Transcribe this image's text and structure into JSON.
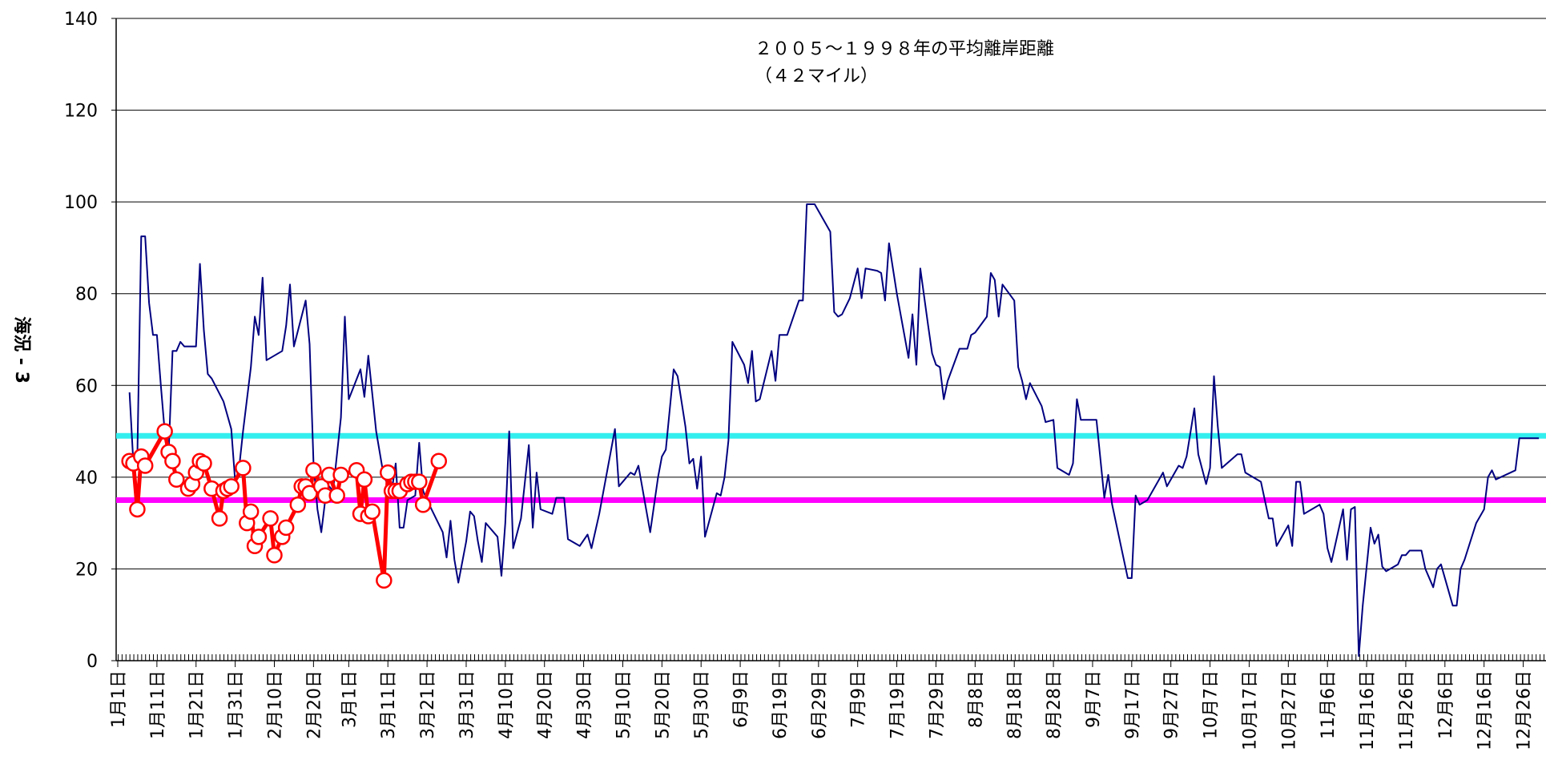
{
  "chart_data": {
    "type": "line",
    "annotation": [
      "２００５～１９９８年の平均離岸距離",
      "（４２マイル）"
    ],
    "y_label": "海況 - 3",
    "xlim": [
      1,
      365
    ],
    "xticks": [
      {
        "value": 1,
        "label": "1月1日"
      },
      {
        "value": 11,
        "label": "1月11日"
      },
      {
        "value": 21,
        "label": "1月21日"
      },
      {
        "value": 31,
        "label": "1月31日"
      },
      {
        "value": 41,
        "label": "2月10日"
      },
      {
        "value": 51,
        "label": "2月20日"
      },
      {
        "value": 60,
        "label": "3月1日"
      },
      {
        "value": 70,
        "label": "3月11日"
      },
      {
        "value": 80,
        "label": "3月21日"
      },
      {
        "value": 90,
        "label": "3月31日"
      },
      {
        "value": 100,
        "label": "4月10日"
      },
      {
        "value": 110,
        "label": "4月20日"
      },
      {
        "value": 120,
        "label": "4月30日"
      },
      {
        "value": 130,
        "label": "5月10日"
      },
      {
        "value": 140,
        "label": "5月20日"
      },
      {
        "value": 150,
        "label": "5月30日"
      },
      {
        "value": 160,
        "label": "6月9日"
      },
      {
        "value": 170,
        "label": "6月19日"
      },
      {
        "value": 180,
        "label": "6月29日"
      },
      {
        "value": 190,
        "label": "7月9日"
      },
      {
        "value": 200,
        "label": "7月19日"
      },
      {
        "value": 210,
        "label": "7月29日"
      },
      {
        "value": 220,
        "label": "8月8日"
      },
      {
        "value": 230,
        "label": "8月18日"
      },
      {
        "value": 240,
        "label": "8月28日"
      },
      {
        "value": 250,
        "label": "9月7日"
      },
      {
        "value": 260,
        "label": "9月17日"
      },
      {
        "value": 270,
        "label": "9月27日"
      },
      {
        "value": 280,
        "label": "10月7日"
      },
      {
        "value": 290,
        "label": "10月17日"
      },
      {
        "value": 300,
        "label": "10月27日"
      },
      {
        "value": 310,
        "label": "11月6日"
      },
      {
        "value": 320,
        "label": "11月16日"
      },
      {
        "value": 330,
        "label": "11月26日"
      },
      {
        "value": 340,
        "label": "12月6日"
      },
      {
        "value": 350,
        "label": "12月16日"
      },
      {
        "value": 360,
        "label": "12月26日"
      }
    ],
    "ylim": [
      0,
      140
    ],
    "yticks": [
      0,
      20,
      40,
      60,
      80,
      100,
      120,
      140
    ],
    "grid": true,
    "hlines": [
      {
        "value": 49,
        "color": "#33eeee"
      },
      {
        "value": 35,
        "color": "#ff00ff"
      }
    ],
    "series": [
      {
        "color": "#000080",
        "markers": false,
        "x": [
          4,
          5,
          6,
          7,
          8,
          9,
          10,
          11,
          12,
          13,
          14,
          15,
          16,
          17,
          18,
          21,
          22,
          23,
          24,
          25,
          28,
          30,
          31,
          32,
          33,
          35,
          36,
          37,
          38,
          39,
          43,
          44,
          45,
          46,
          49,
          50,
          51,
          52,
          53,
          54,
          55,
          56,
          57,
          58,
          59,
          60,
          63,
          64,
          65,
          67,
          69,
          71,
          72,
          73,
          74,
          75,
          77,
          78,
          79,
          80,
          84,
          85,
          86,
          87,
          88,
          90,
          91,
          92,
          93,
          94,
          95,
          98,
          99,
          100,
          101,
          102,
          104,
          106,
          107,
          108,
          109,
          112,
          113,
          115,
          116,
          119,
          121,
          122,
          124,
          128,
          129,
          132,
          133,
          134,
          137,
          139,
          140,
          141,
          143,
          144,
          146,
          147,
          148,
          149,
          150,
          151,
          154,
          155,
          156,
          157,
          158,
          161,
          162,
          163,
          164,
          165,
          168,
          169,
          170,
          172,
          175,
          176,
          177,
          179,
          183,
          184,
          185,
          186,
          188,
          190,
          191,
          192,
          195,
          196,
          197,
          198,
          200,
          203,
          204,
          205,
          206,
          208,
          209,
          210,
          211,
          212,
          213,
          216,
          218,
          219,
          220,
          223,
          224,
          225,
          226,
          227,
          230,
          231,
          232,
          233,
          234,
          237,
          238,
          240,
          241,
          244,
          245,
          246,
          247,
          251,
          252,
          253,
          254,
          255,
          259,
          260,
          261,
          262,
          264,
          268,
          269,
          272,
          273,
          274,
          276,
          277,
          279,
          280,
          281,
          282,
          283,
          287,
          288,
          289,
          290,
          293,
          294,
          295,
          296,
          297,
          300,
          301,
          302,
          303,
          304,
          308,
          309,
          310,
          311,
          314,
          315,
          316,
          317,
          318,
          319,
          321,
          322,
          323,
          324,
          325,
          328,
          329,
          330,
          331,
          334,
          335,
          337,
          338,
          339,
          342,
          343,
          344,
          345,
          348,
          350,
          351,
          352,
          353,
          358,
          359,
          360,
          364
        ],
        "values": [
          58.5,
          43,
          44,
          92.5,
          92.5,
          78,
          71,
          71,
          60,
          50,
          45,
          67.5,
          67.5,
          69.5,
          68.5,
          68.5,
          86.5,
          72,
          62.5,
          61.5,
          56.5,
          50.5,
          39,
          42,
          50,
          64,
          75,
          71,
          83.5,
          65.5,
          67.5,
          73,
          82,
          68.5,
          78.5,
          69,
          43,
          33,
          28,
          35,
          38,
          37,
          45,
          53,
          75,
          57,
          63.5,
          57.5,
          66.5,
          50,
          40,
          37,
          43,
          29,
          29,
          35,
          36,
          47.5,
          37,
          35,
          28,
          22.5,
          30.5,
          22,
          17,
          26,
          32.5,
          31.5,
          26,
          21.5,
          30,
          27,
          18.5,
          30,
          50,
          24.5,
          31,
          47,
          29,
          41,
          33,
          32,
          35.5,
          35.5,
          26.5,
          25,
          27.5,
          24.5,
          32,
          50.5,
          38,
          41,
          40.5,
          42.5,
          28,
          40,
          44.5,
          46,
          63.5,
          62,
          51,
          43,
          44,
          37.5,
          44.5,
          27,
          36.5,
          36,
          40,
          48,
          69.5,
          64.5,
          60.5,
          67.5,
          56.5,
          57,
          67.5,
          61,
          71,
          71,
          78.5,
          78.5,
          99.5,
          99.5,
          93.5,
          76,
          75,
          75.5,
          79,
          85.5,
          79,
          85.5,
          85,
          84.5,
          78.5,
          91,
          80,
          66,
          75.5,
          64.5,
          85.5,
          73,
          67,
          64.5,
          64,
          57,
          61,
          68,
          68,
          71,
          71.5,
          75,
          84.5,
          83,
          75,
          82,
          78.5,
          64,
          61,
          57,
          60.5,
          55.5,
          52,
          52.5,
          42,
          40.5,
          43,
          57,
          52.5,
          52.5,
          44,
          35.5,
          40.5,
          34,
          18,
          18,
          36,
          34,
          35,
          41,
          38,
          42.5,
          42,
          44.5,
          55,
          45,
          38.5,
          42,
          62,
          51,
          42,
          45,
          45,
          41,
          40.5,
          39,
          35,
          31,
          31,
          25,
          29.5,
          25,
          39,
          39,
          32,
          34,
          32,
          24.5,
          21.5,
          33,
          22,
          33,
          33.5,
          1,
          12,
          29,
          25.5,
          27.5,
          20.5,
          19.5,
          21,
          23,
          23,
          24,
          24,
          20,
          16,
          20,
          21,
          12,
          12,
          20,
          22,
          30,
          33,
          40,
          41.5,
          39.5,
          41.5,
          48.5,
          48.5,
          48.5
        ]
      },
      {
        "color": "#ff0000",
        "markers": true,
        "x": [
          4,
          5,
          6,
          7,
          8,
          13,
          14,
          15,
          16,
          19,
          20,
          21,
          22,
          23,
          25,
          27,
          28,
          29,
          30,
          33,
          34,
          35,
          36,
          37,
          40,
          41,
          43,
          44,
          47,
          48,
          49,
          50,
          51,
          53,
          54,
          55,
          57,
          58,
          62,
          63,
          64,
          65,
          66,
          69,
          70,
          71,
          72,
          73,
          75,
          76,
          77,
          78,
          79,
          83
        ],
        "values": [
          43.5,
          43,
          33,
          44.5,
          42.5,
          50,
          45.5,
          43.5,
          39.5,
          37.5,
          38.5,
          41,
          43.5,
          43,
          37.5,
          31,
          37,
          37.5,
          38,
          42,
          30,
          32.5,
          25,
          27,
          31,
          23,
          27,
          29,
          34,
          38,
          38,
          36.5,
          41.5,
          38,
          36,
          40.5,
          36,
          40.5,
          41.5,
          32,
          39.5,
          31.5,
          32.5,
          17.5,
          41,
          37,
          37,
          37,
          38.5,
          39,
          39,
          39,
          34,
          43.5
        ]
      }
    ]
  }
}
